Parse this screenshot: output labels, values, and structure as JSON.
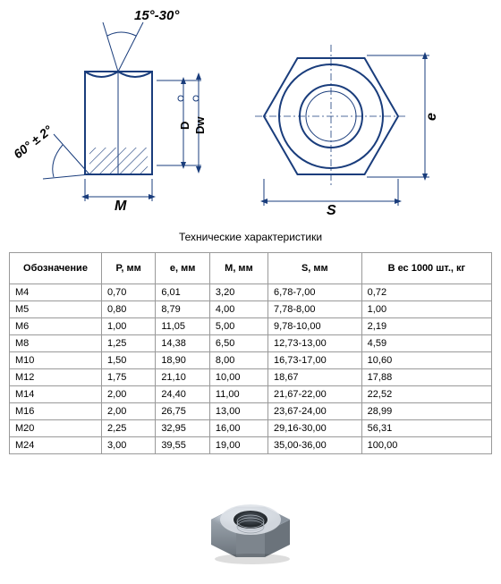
{
  "diagram": {
    "chamfer_label": "15°-30°",
    "angle_label": "60° ± 2°",
    "width_label": "M",
    "flats_label": "S",
    "corner_label": "e",
    "d_label": "D",
    "dw_label": "Dw",
    "stroke_color": "#1a3d7c",
    "stroke_width": 2,
    "hatch_color": "#1a3d7c"
  },
  "caption": "Технические характеристики",
  "table": {
    "columns": [
      "Обозначение",
      "P, мм",
      "e, мм",
      "M, мм",
      "S, мм",
      "В ес 1000 шт., кг"
    ],
    "rows": [
      [
        "М4",
        "0,70",
        "6,01",
        "3,20",
        "6,78-7,00",
        "0,72"
      ],
      [
        "М5",
        "0,80",
        "8,79",
        "4,00",
        "7,78-8,00",
        "1,00"
      ],
      [
        "М6",
        "1,00",
        "11,05",
        "5,00",
        "9,78-10,00",
        "2,19"
      ],
      [
        "М8",
        "1,25",
        "14,38",
        "6,50",
        "12,73-13,00",
        "4,59"
      ],
      [
        "М10",
        "1,50",
        "18,90",
        "8,00",
        "16,73-17,00",
        "10,60"
      ],
      [
        "М12",
        "1,75",
        "21,10",
        "10,00",
        "18,67",
        "17,88"
      ],
      [
        "М14",
        "2,00",
        "24,40",
        "11,00",
        "21,67-22,00",
        "22,52"
      ],
      [
        "М16",
        "2,00",
        "26,75",
        "13,00",
        "23,67-24,00",
        "28,99"
      ],
      [
        "М20",
        "2,25",
        "32,95",
        "16,00",
        "29,16-30,00",
        "56,31"
      ],
      [
        "М24",
        "3,00",
        "39,55",
        "19,00",
        "35,00-36,00",
        "100,00"
      ]
    ]
  }
}
